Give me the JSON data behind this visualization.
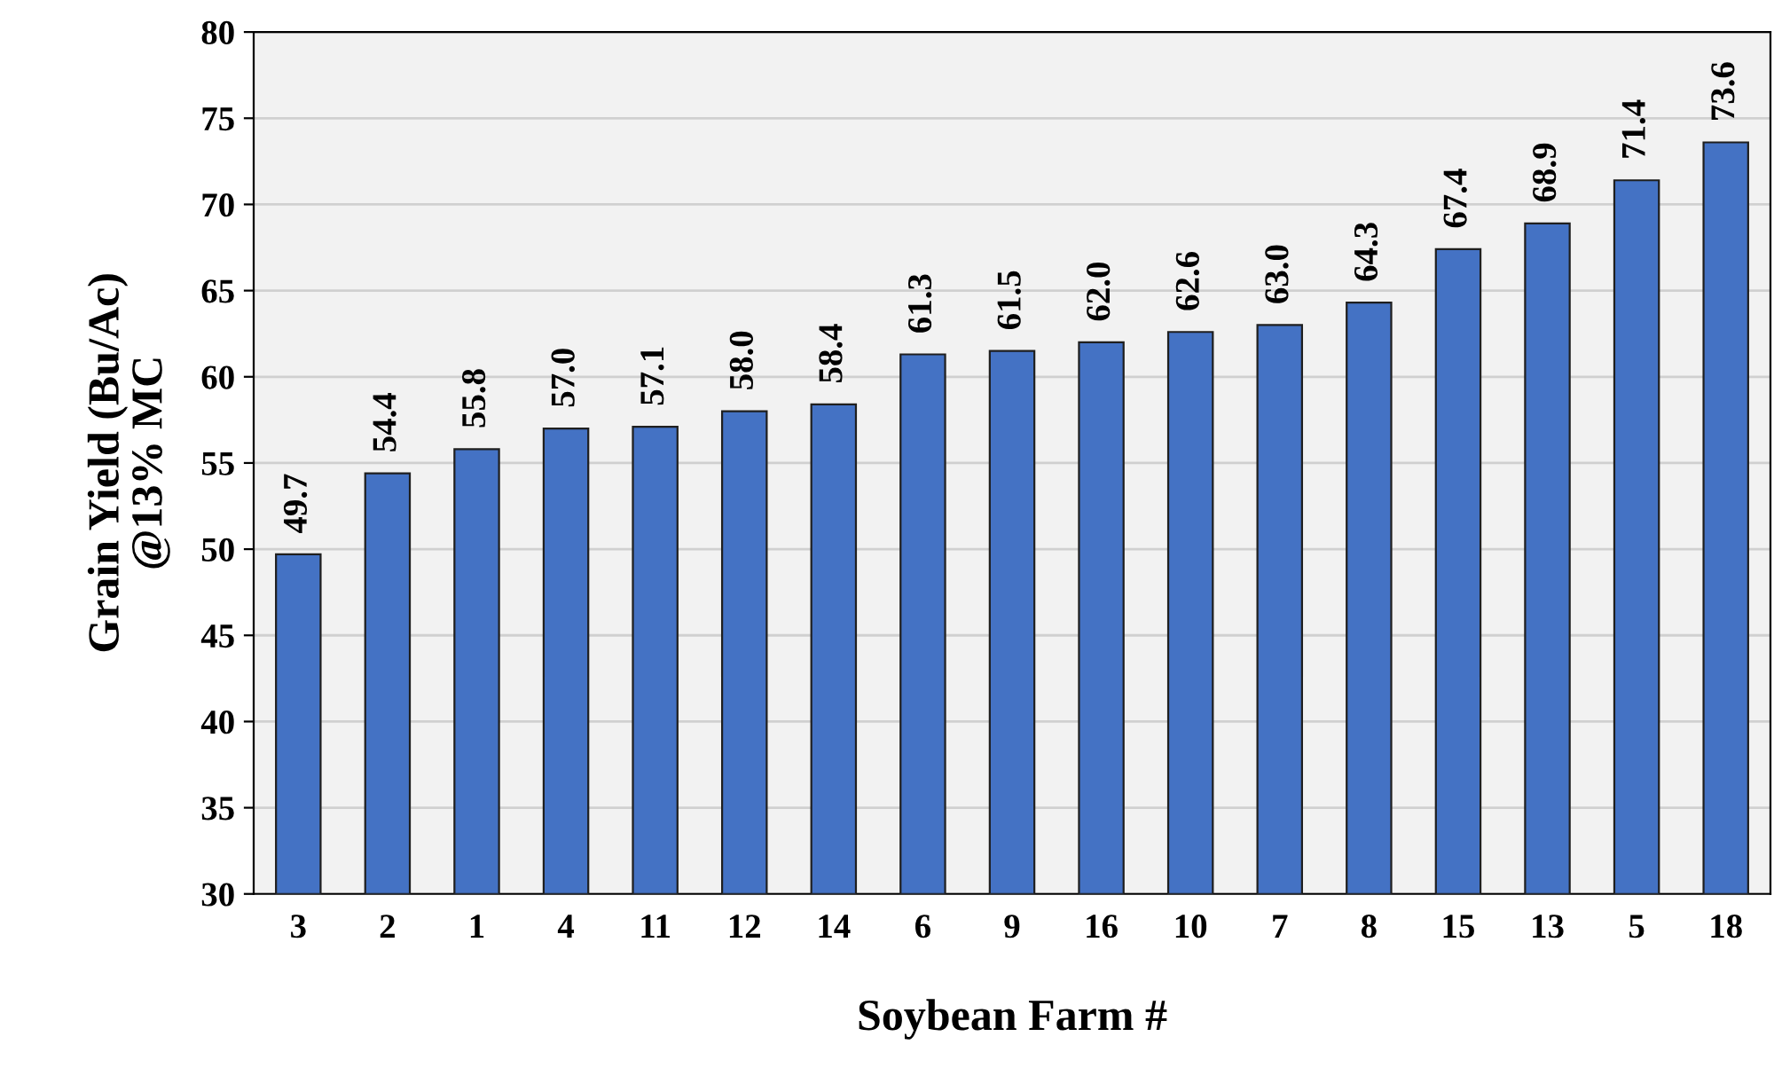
{
  "chart_data": {
    "type": "bar",
    "xlabel": "Soybean Farm #",
    "ylabel": "Grain Yield (Bu/Ac)\n@13% MC",
    "categories": [
      "3",
      "2",
      "1",
      "4",
      "11",
      "12",
      "14",
      "6",
      "9",
      "16",
      "10",
      "7",
      "8",
      "15",
      "13",
      "5",
      "18"
    ],
    "values": [
      49.7,
      54.4,
      55.8,
      57.0,
      57.1,
      58.0,
      58.4,
      61.3,
      61.5,
      62.0,
      62.6,
      63.0,
      64.3,
      67.4,
      68.9,
      71.4,
      73.6
    ],
    "value_labels": [
      "49.7",
      "54.4",
      "55.8",
      "57.0",
      "57.1",
      "58.0",
      "58.4",
      "61.3",
      "61.5",
      "62.0",
      "62.6",
      "63.0",
      "64.3",
      "67.4",
      "68.9",
      "71.4",
      "73.6"
    ],
    "color": "#4472c4",
    "ylim": [
      30,
      80
    ],
    "yticks": [
      30,
      35,
      40,
      45,
      50,
      55,
      60,
      65,
      70,
      75,
      80
    ],
    "grid": "y"
  }
}
